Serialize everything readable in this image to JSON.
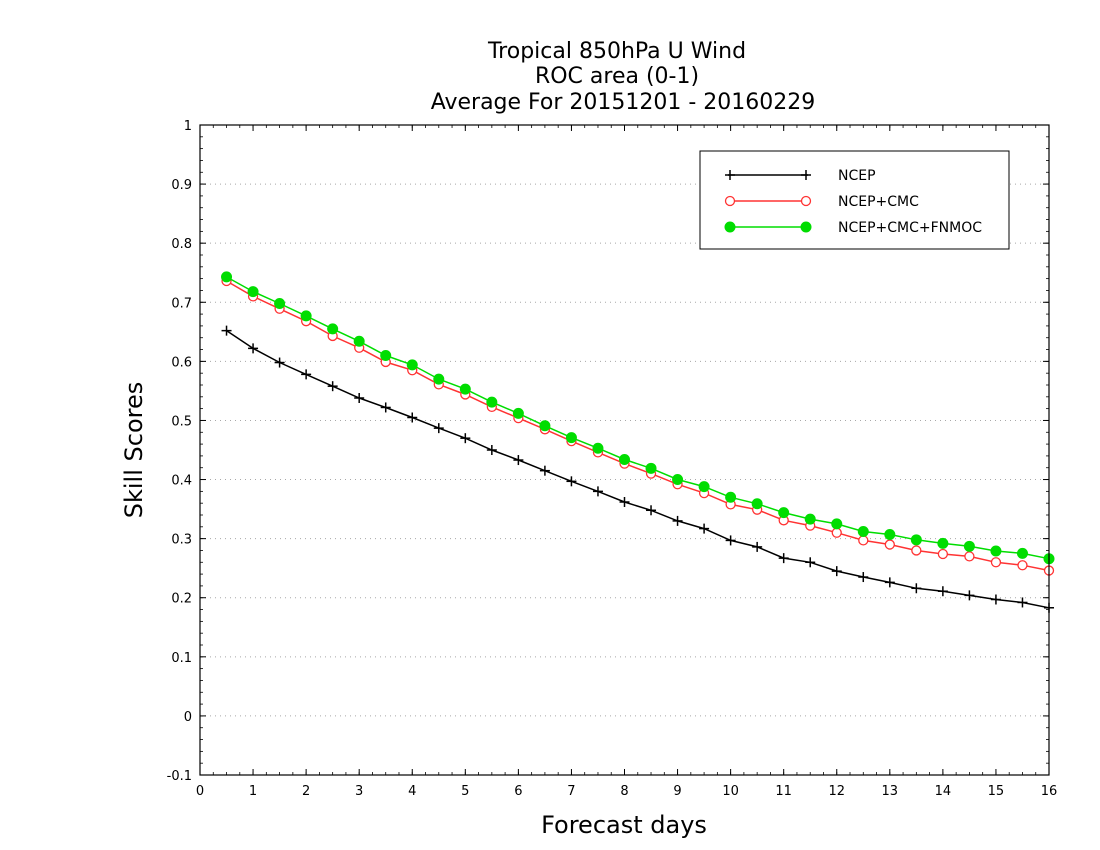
{
  "chart_data": {
    "type": "line",
    "title_lines": [
      "Tropical 850hPa U Wind",
      "ROC area (0-1)",
      "Average For 20151201 - 20160229"
    ],
    "xlabel": "Forecast days",
    "ylabel": "Skill Scores",
    "xlim": [
      0,
      16
    ],
    "ylim": [
      -0.1,
      1
    ],
    "xticks": [
      0,
      1,
      2,
      3,
      4,
      5,
      6,
      7,
      8,
      9,
      10,
      11,
      12,
      13,
      14,
      15,
      16
    ],
    "yticks": [
      -0.1,
      0,
      0.1,
      0.2,
      0.3,
      0.4,
      0.5,
      0.6,
      0.7,
      0.8,
      0.9,
      1
    ],
    "ytick_labels": [
      "-0.1",
      "0",
      "0.1",
      "0.2",
      "0.3",
      "0.4",
      "0.5",
      "0.6",
      "0.7",
      "0.8",
      "0.9",
      "1"
    ],
    "grid": "horizontal dotted",
    "legend_position": "top-right",
    "x": [
      0.5,
      1,
      1.5,
      2,
      2.5,
      3,
      3.5,
      4,
      4.5,
      5,
      5.5,
      6,
      6.5,
      7,
      7.5,
      8,
      8.5,
      9,
      9.5,
      10,
      10.5,
      11,
      11.5,
      12,
      12.5,
      13,
      13.5,
      14,
      14.5,
      15,
      15.5,
      16
    ],
    "series": [
      {
        "name": "NCEP",
        "color": "#000000",
        "marker": "plus",
        "values": [
          0.652,
          0.622,
          0.598,
          0.578,
          0.558,
          0.538,
          0.522,
          0.505,
          0.487,
          0.47,
          0.45,
          0.433,
          0.415,
          0.397,
          0.38,
          0.362,
          0.348,
          0.33,
          0.317,
          0.297,
          0.286,
          0.267,
          0.26,
          0.245,
          0.235,
          0.226,
          0.216,
          0.211,
          0.204,
          0.197,
          0.192,
          0.183
        ]
      },
      {
        "name": "NCEP+CMC",
        "color": "#ff3333",
        "marker": "open-circle",
        "values": [
          0.736,
          0.71,
          0.689,
          0.668,
          0.643,
          0.623,
          0.599,
          0.585,
          0.561,
          0.544,
          0.523,
          0.504,
          0.485,
          0.465,
          0.446,
          0.427,
          0.41,
          0.392,
          0.377,
          0.358,
          0.349,
          0.331,
          0.322,
          0.31,
          0.297,
          0.29,
          0.28,
          0.274,
          0.27,
          0.26,
          0.255,
          0.246
        ]
      },
      {
        "name": "NCEP+CMC+FNMOC",
        "color": "#00dd00",
        "marker": "filled-circle",
        "values": [
          0.743,
          0.718,
          0.698,
          0.677,
          0.655,
          0.634,
          0.61,
          0.594,
          0.57,
          0.553,
          0.531,
          0.512,
          0.491,
          0.471,
          0.453,
          0.434,
          0.419,
          0.4,
          0.388,
          0.37,
          0.359,
          0.344,
          0.333,
          0.325,
          0.312,
          0.307,
          0.298,
          0.292,
          0.287,
          0.279,
          0.275,
          0.266
        ]
      }
    ]
  }
}
